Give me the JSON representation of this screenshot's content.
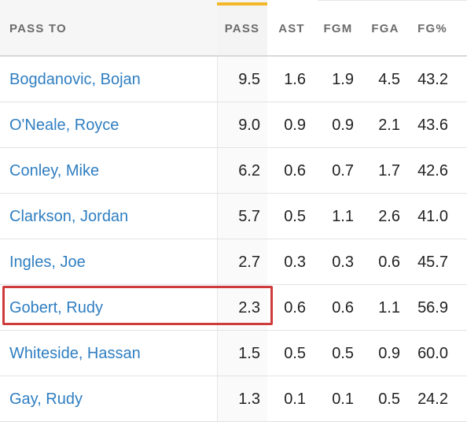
{
  "table": {
    "headers": {
      "name": "PASS TO",
      "pass": "PASS",
      "ast": "AST",
      "fgm": "FGM",
      "fga": "FGA",
      "fgp": "FG%"
    },
    "sorted_column": "PASS",
    "colors": {
      "link": "#2f7ec1",
      "sort_indicator": "#f2b82a",
      "highlight": "#cf3b3b",
      "header_text": "#6b6b6b"
    },
    "rows": [
      {
        "name": "Bogdanovic, Bojan",
        "pass": "9.5",
        "ast": "1.6",
        "fgm": "1.9",
        "fga": "4.5",
        "fgp": "43.2"
      },
      {
        "name": "O'Neale, Royce",
        "pass": "9.0",
        "ast": "0.9",
        "fgm": "0.9",
        "fga": "2.1",
        "fgp": "43.6"
      },
      {
        "name": "Conley, Mike",
        "pass": "6.2",
        "ast": "0.6",
        "fgm": "0.7",
        "fga": "1.7",
        "fgp": "42.6"
      },
      {
        "name": "Clarkson, Jordan",
        "pass": "5.7",
        "ast": "0.5",
        "fgm": "1.1",
        "fga": "2.6",
        "fgp": "41.0"
      },
      {
        "name": "Ingles, Joe",
        "pass": "2.7",
        "ast": "0.3",
        "fgm": "0.3",
        "fga": "0.6",
        "fgp": "45.7"
      },
      {
        "name": "Gobert, Rudy",
        "pass": "2.3",
        "ast": "0.6",
        "fgm": "0.6",
        "fga": "1.1",
        "fgp": "56.9"
      },
      {
        "name": "Whiteside, Hassan",
        "pass": "1.5",
        "ast": "0.5",
        "fgm": "0.5",
        "fga": "0.9",
        "fgp": "60.0"
      },
      {
        "name": "Gay, Rudy",
        "pass": "1.3",
        "ast": "0.1",
        "fgm": "0.1",
        "fga": "0.5",
        "fgp": "24.2"
      }
    ],
    "highlighted_row": "Gobert, Rudy"
  }
}
